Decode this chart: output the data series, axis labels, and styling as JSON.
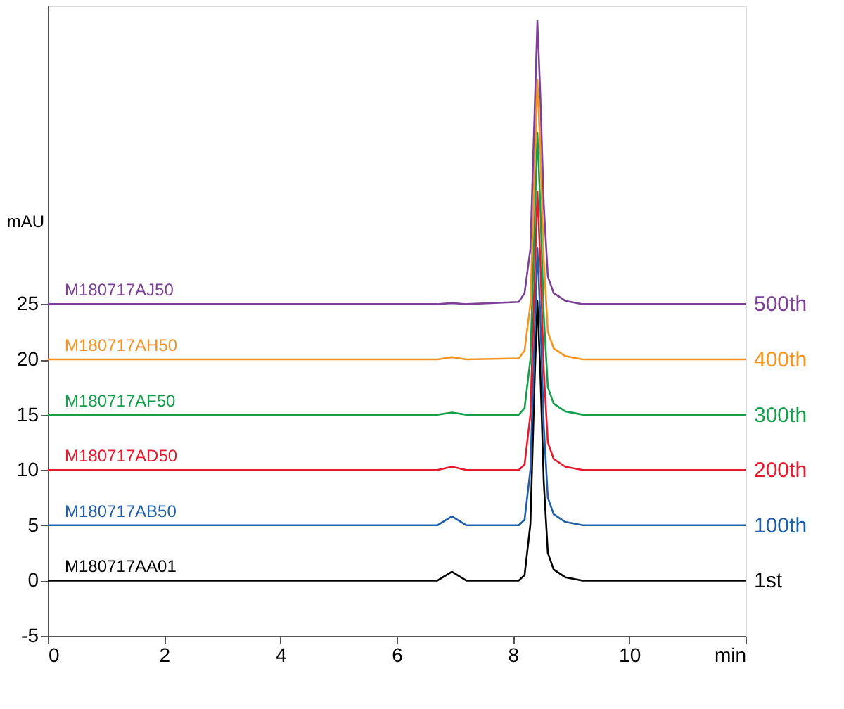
{
  "chart_data": {
    "type": "line",
    "ylabel": "mAU",
    "x": [
      0,
      6.7,
      6.95,
      7.2,
      8.1,
      8.2,
      8.3,
      8.37,
      8.42,
      8.47,
      8.53,
      8.6,
      8.7,
      8.9,
      9.2,
      12
    ],
    "series": [
      {
        "name": "1st",
        "color": "#000000",
        "values": [
          0,
          0,
          0.8,
          0,
          0,
          0.5,
          5.1,
          17.7,
          25.3,
          19,
          8.9,
          2.5,
          1,
          0.3,
          0,
          0
        ]
      },
      {
        "name": "100th",
        "color": "#1f5faa",
        "values": [
          5,
          5,
          5.8,
          5,
          5,
          5.5,
          10,
          22,
          30.1,
          24,
          14,
          7.5,
          6,
          5.3,
          5,
          5
        ]
      },
      {
        "name": "200th",
        "color": "#e8192c",
        "values": [
          10,
          10,
          10.3,
          10,
          10,
          10.5,
          15,
          27,
          35.2,
          29,
          19,
          12.5,
          11,
          10.3,
          10,
          10
        ]
      },
      {
        "name": "300th",
        "color": "#14a04a",
        "values": [
          15,
          15,
          15.2,
          15,
          15,
          15.6,
          20,
          32,
          40.5,
          34,
          24,
          17.5,
          16,
          15.3,
          15,
          15
        ]
      },
      {
        "name": "400th",
        "color": "#f7931e",
        "values": [
          20,
          20,
          20.2,
          20,
          20.1,
          20.8,
          25,
          37,
          45.3,
          39,
          29,
          22.5,
          21,
          20.3,
          20,
          20
        ]
      },
      {
        "name": "500th",
        "color": "#7d3f98",
        "values": [
          25,
          25,
          25.1,
          25,
          25.2,
          26,
          30,
          42,
          50.6,
          44,
          34,
          27.5,
          26,
          25.3,
          25,
          25
        ]
      }
    ],
    "annotations": [
      "M180717AA01",
      "M180717AB50",
      "M180717AD50",
      "M180717AF50",
      "M180717AH50",
      "M180717AJ50"
    ],
    "xlim": [
      0,
      12
    ],
    "xticks": [
      0,
      2,
      4,
      6,
      8,
      10,
      {
        "value": 12,
        "label": "min"
      }
    ],
    "ylim": [
      -5,
      52
    ],
    "yticks": [
      -5,
      0,
      5,
      10,
      15,
      20,
      25
    ],
    "grid": false,
    "legend": false,
    "marker": "none",
    "line_style": "solid"
  }
}
